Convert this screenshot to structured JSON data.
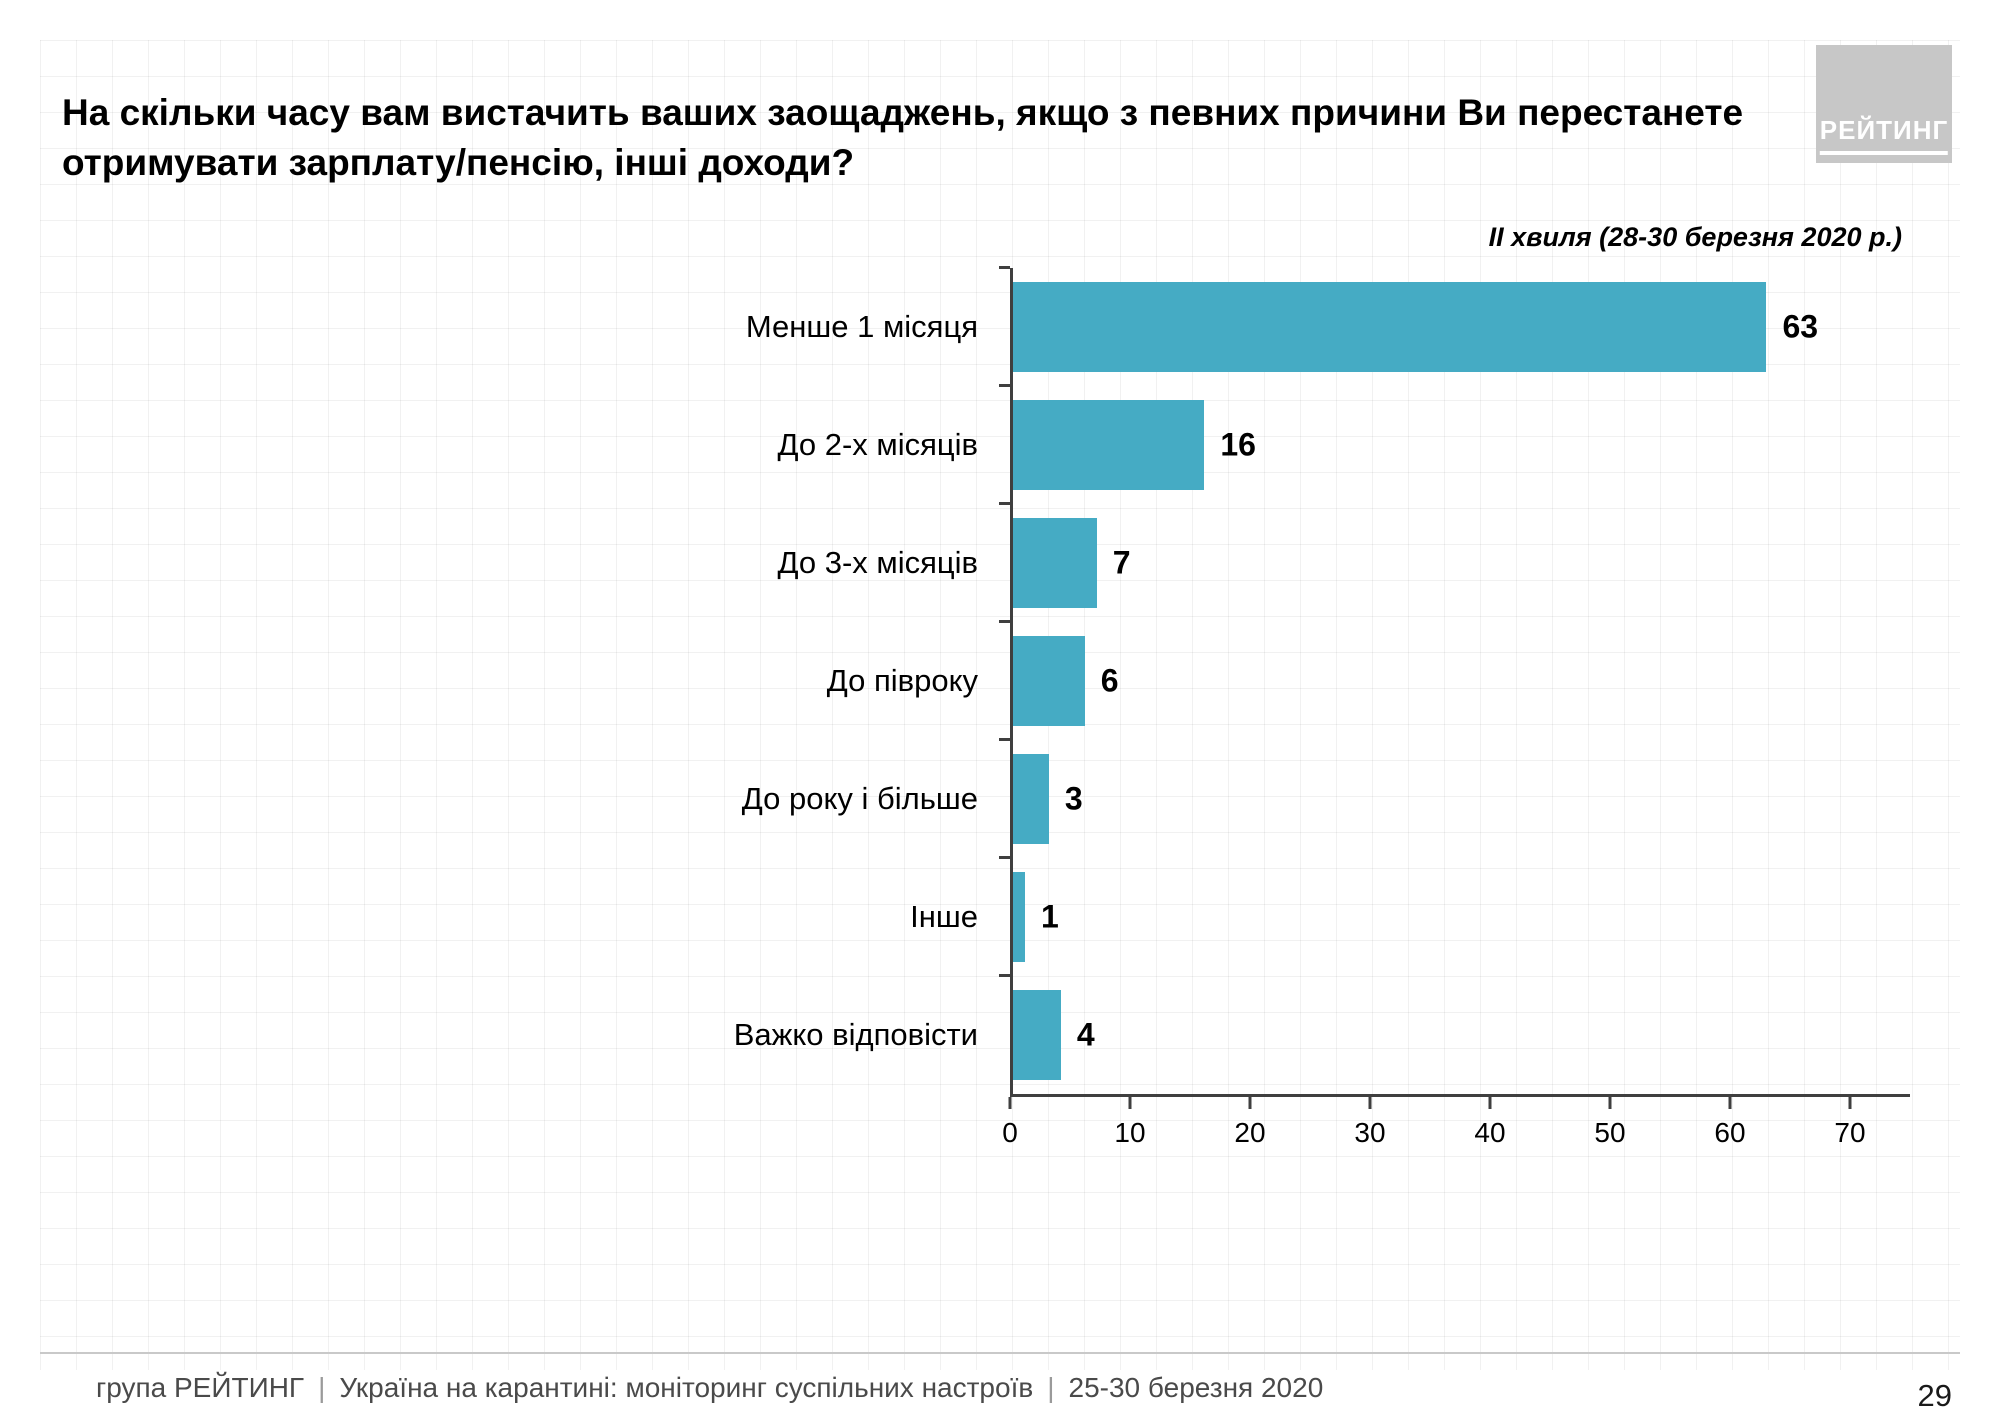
{
  "slide": {
    "title": "На скільки часу вам вистачить ваших заощаджень, якщо з певних причини Ви перестанете отримувати зарплату/пенсію, інші доходи?",
    "subtitle": "ІІ хвиля (28-30 березня 2020 р.)",
    "logo_text": "РЕЙТИНГ",
    "page_number": "29",
    "footer": {
      "org": "група РЕЙТИНГ",
      "sep": "|",
      "project": "Україна на карантині: моніторинг суспільних настроїв",
      "dates": "25-30 березня 2020"
    }
  },
  "chart_data": {
    "type": "bar",
    "orientation": "horizontal",
    "title": "На скільки часу вам вистачить ваших заощаджень, якщо з певних причини Ви перестанете отримувати зарплату/пенсію, інші доходи?",
    "subtitle": "ІІ хвиля (28-30 березня 2020 р.)",
    "categories": [
      "Менше 1 місяця",
      "До 2-х місяців",
      "До 3-х місяців",
      "До півроку",
      "До року і більше",
      "Інше",
      "Важко відповісти"
    ],
    "values": [
      63,
      16,
      7,
      6,
      3,
      1,
      4
    ],
    "xlabel": "",
    "ylabel": "",
    "xlim": [
      0,
      75
    ],
    "xticks": [
      0,
      10,
      20,
      30,
      40,
      50,
      60,
      70
    ],
    "bar_color": "#45abc4",
    "axis_color": "#3f3f3f",
    "grid": "faint background grid",
    "legend": "none"
  }
}
